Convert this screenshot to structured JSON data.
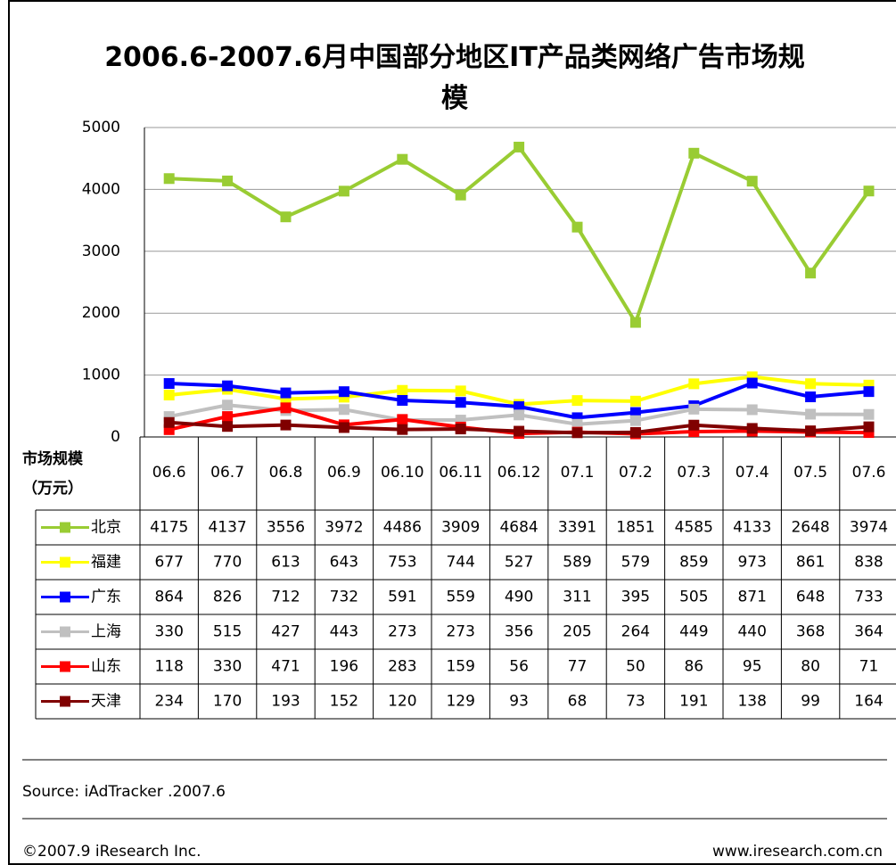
{
  "chart_data": {
    "type": "line",
    "title": "2006.6-2007.6月中国部分地区IT产品类网络广告市场规模",
    "ylabel": [
      "市场规模",
      "（万元）"
    ],
    "categories": [
      "06.6",
      "06.7",
      "06.8",
      "06.9",
      "06.10",
      "06.11",
      "06.12",
      "07.1",
      "07.2",
      "07.3",
      "07.4",
      "07.5",
      "07.6"
    ],
    "ylim": [
      0,
      5000
    ],
    "yticks": [
      0,
      1000,
      2000,
      3000,
      4000,
      5000
    ],
    "grid": true,
    "series": [
      {
        "name": "北京",
        "color": "#99cc33",
        "values": [
          4175,
          4137,
          3556,
          3972,
          4486,
          3909,
          4684,
          3391,
          1851,
          4585,
          4133,
          2648,
          3974
        ]
      },
      {
        "name": "福建",
        "color": "#ffff00",
        "values": [
          677,
          770,
          613,
          643,
          753,
          744,
          527,
          589,
          579,
          859,
          973,
          861,
          838
        ]
      },
      {
        "name": "广东",
        "color": "#0000ff",
        "values": [
          864,
          826,
          712,
          732,
          591,
          559,
          490,
          311,
          395,
          505,
          871,
          648,
          733
        ]
      },
      {
        "name": "上海",
        "color": "#c0c0c0",
        "values": [
          330,
          515,
          427,
          443,
          273,
          273,
          356,
          205,
          264,
          449,
          440,
          368,
          364
        ]
      },
      {
        "name": "山东",
        "color": "#ff0000",
        "values": [
          118,
          330,
          471,
          196,
          283,
          159,
          56,
          77,
          50,
          86,
          95,
          80,
          71
        ]
      },
      {
        "name": "天津",
        "color": "#800000",
        "values": [
          234,
          170,
          193,
          152,
          120,
          129,
          93,
          68,
          73,
          191,
          138,
          99,
          164
        ]
      }
    ],
    "source": "Source: iAdTracker .2007.6",
    "copyright": "©2007.9 iResearch Inc.",
    "website": "www.iresearch.com.cn"
  }
}
